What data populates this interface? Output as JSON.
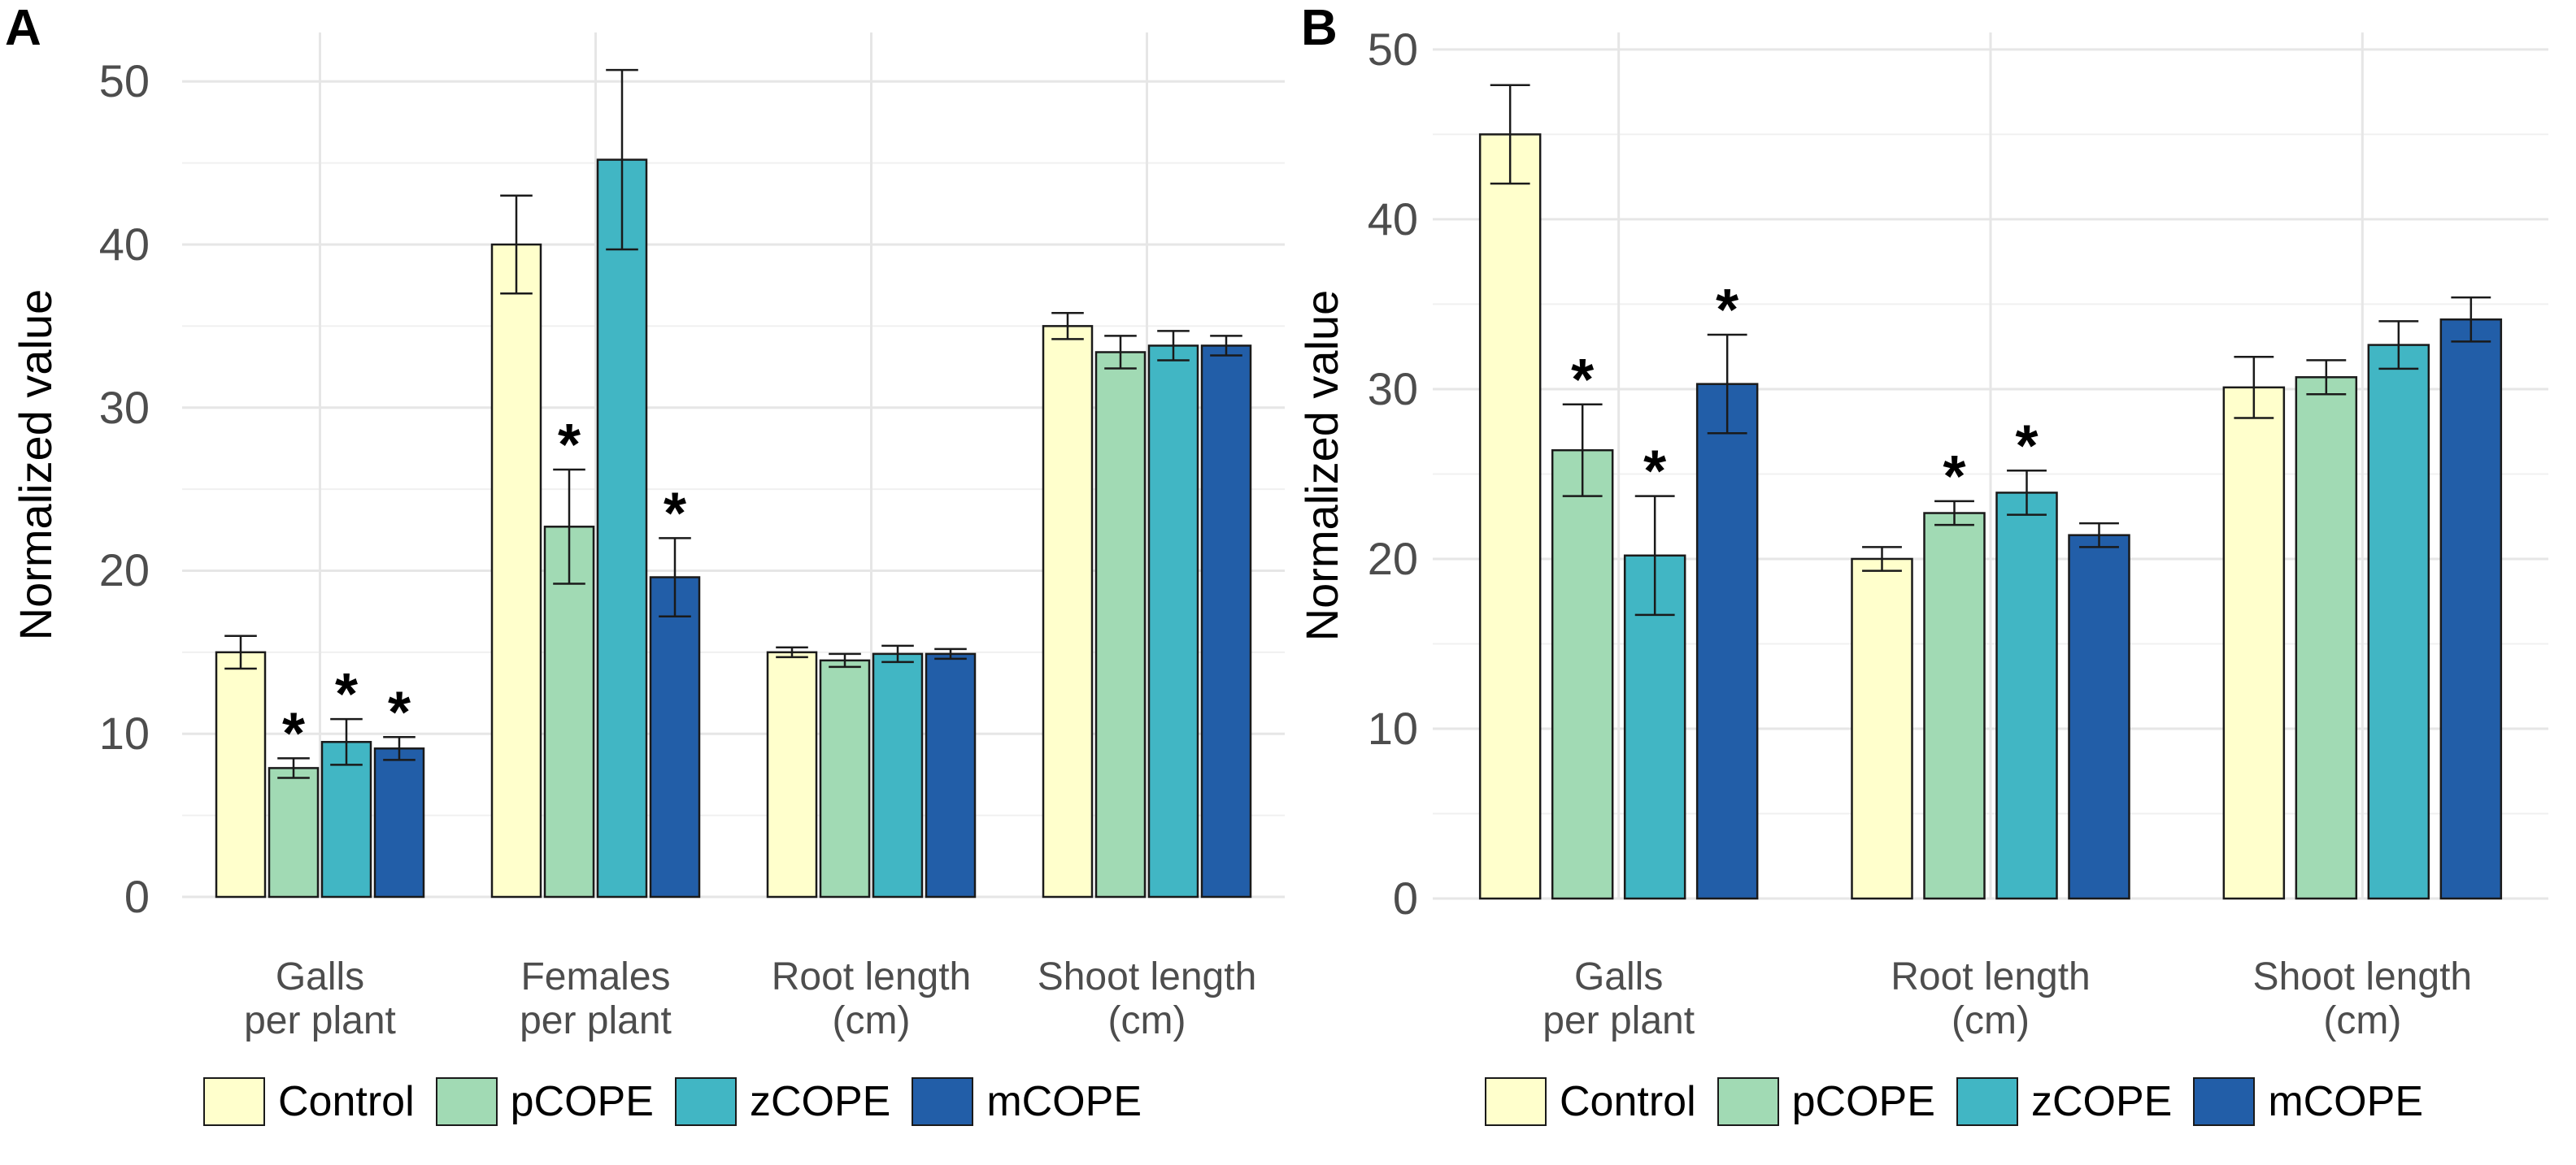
{
  "series_colors": {
    "Control": "#ffffcc",
    "pCOPE": "#a1dab4",
    "zCOPE": "#41b6c4",
    "mCOPE": "#225ea8"
  },
  "chart_data": [
    {
      "panel_label": "A",
      "type": "bar",
      "ylabel": "Normalized value",
      "ylim": [
        0,
        53
      ],
      "yticks": [
        0,
        10,
        20,
        30,
        40,
        50
      ],
      "categories": [
        {
          "line1": "Galls",
          "line2": "per plant"
        },
        {
          "line1": "Females",
          "line2": "per plant"
        },
        {
          "line1": "Root length",
          "line2": "(cm)"
        },
        {
          "line1": "Shoot length",
          "line2": "(cm)"
        }
      ],
      "series": [
        {
          "name": "Control",
          "values": [
            15.0,
            40.0,
            15.0,
            35.0
          ],
          "errors": [
            1.0,
            3.0,
            0.3,
            0.8
          ],
          "significant": [
            false,
            false,
            false,
            false
          ]
        },
        {
          "name": "pCOPE",
          "values": [
            7.9,
            22.7,
            14.5,
            33.4
          ],
          "errors": [
            0.6,
            3.5,
            0.4,
            1.0
          ],
          "significant": [
            true,
            true,
            false,
            false
          ]
        },
        {
          "name": "zCOPE",
          "values": [
            9.5,
            45.2,
            14.9,
            33.8
          ],
          "errors": [
            1.4,
            5.5,
            0.5,
            0.9
          ],
          "significant": [
            true,
            false,
            false,
            false
          ]
        },
        {
          "name": "mCOPE",
          "values": [
            9.1,
            19.6,
            14.9,
            33.8
          ],
          "errors": [
            0.7,
            2.4,
            0.3,
            0.6
          ],
          "significant": [
            true,
            true,
            false,
            false
          ]
        }
      ],
      "significance_marker": "*",
      "legend": [
        "Control",
        "pCOPE",
        "zCOPE",
        "mCOPE"
      ]
    },
    {
      "panel_label": "B",
      "type": "bar",
      "ylabel": "Normalized value",
      "ylim": [
        0,
        51
      ],
      "yticks": [
        0,
        10,
        20,
        30,
        40,
        50
      ],
      "categories": [
        {
          "line1": "Galls",
          "line2": "per plant"
        },
        {
          "line1": "Root length",
          "line2": "(cm)"
        },
        {
          "line1": "Shoot length",
          "line2": "(cm)"
        }
      ],
      "series": [
        {
          "name": "Control",
          "values": [
            45.0,
            20.0,
            30.1
          ],
          "errors": [
            2.9,
            0.7,
            1.8
          ],
          "significant": [
            false,
            false,
            false
          ]
        },
        {
          "name": "pCOPE",
          "values": [
            26.4,
            22.7,
            30.7
          ],
          "errors": [
            2.7,
            0.7,
            1.0
          ],
          "significant": [
            true,
            true,
            false
          ]
        },
        {
          "name": "zCOPE",
          "values": [
            20.2,
            23.9,
            32.6
          ],
          "errors": [
            3.5,
            1.3,
            1.4
          ],
          "significant": [
            true,
            true,
            false
          ]
        },
        {
          "name": "mCOPE",
          "values": [
            30.3,
            21.4,
            34.1
          ],
          "errors": [
            2.9,
            0.7,
            1.3
          ],
          "significant": [
            true,
            false,
            false
          ]
        }
      ],
      "significance_marker": "*",
      "legend": [
        "Control",
        "pCOPE",
        "zCOPE",
        "mCOPE"
      ]
    }
  ]
}
